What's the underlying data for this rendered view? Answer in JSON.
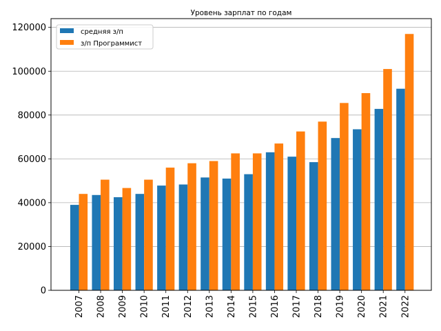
{
  "chart_data": {
    "type": "bar",
    "title": "Уровень зарплат по годам",
    "xlabel": "",
    "ylabel": "",
    "categories": [
      "2007",
      "2008",
      "2009",
      "2010",
      "2011",
      "2012",
      "2013",
      "2014",
      "2015",
      "2016",
      "2017",
      "2018",
      "2019",
      "2020",
      "2021",
      "2022"
    ],
    "series": [
      {
        "name": "средняя з/п",
        "color": "#1f77b4",
        "values": [
          39000,
          43500,
          42500,
          44000,
          47800,
          48300,
          51500,
          51000,
          53000,
          63000,
          61000,
          58500,
          69500,
          73500,
          82800,
          92000
        ]
      },
      {
        "name": "з/п Программист",
        "color": "#ff7f0e",
        "values": [
          44000,
          50500,
          46700,
          50500,
          56000,
          58000,
          59000,
          62500,
          62500,
          67000,
          72500,
          77000,
          85500,
          90000,
          101000,
          117000
        ]
      }
    ],
    "ylim": [
      0,
      124000
    ],
    "yticks": [
      "0",
      "20000",
      "40000",
      "60000",
      "80000",
      "100000",
      "120000"
    ],
    "ytick_values": [
      0,
      20000,
      40000,
      60000,
      80000,
      100000,
      120000
    ],
    "grid": "y",
    "legend_position": "top-left"
  }
}
